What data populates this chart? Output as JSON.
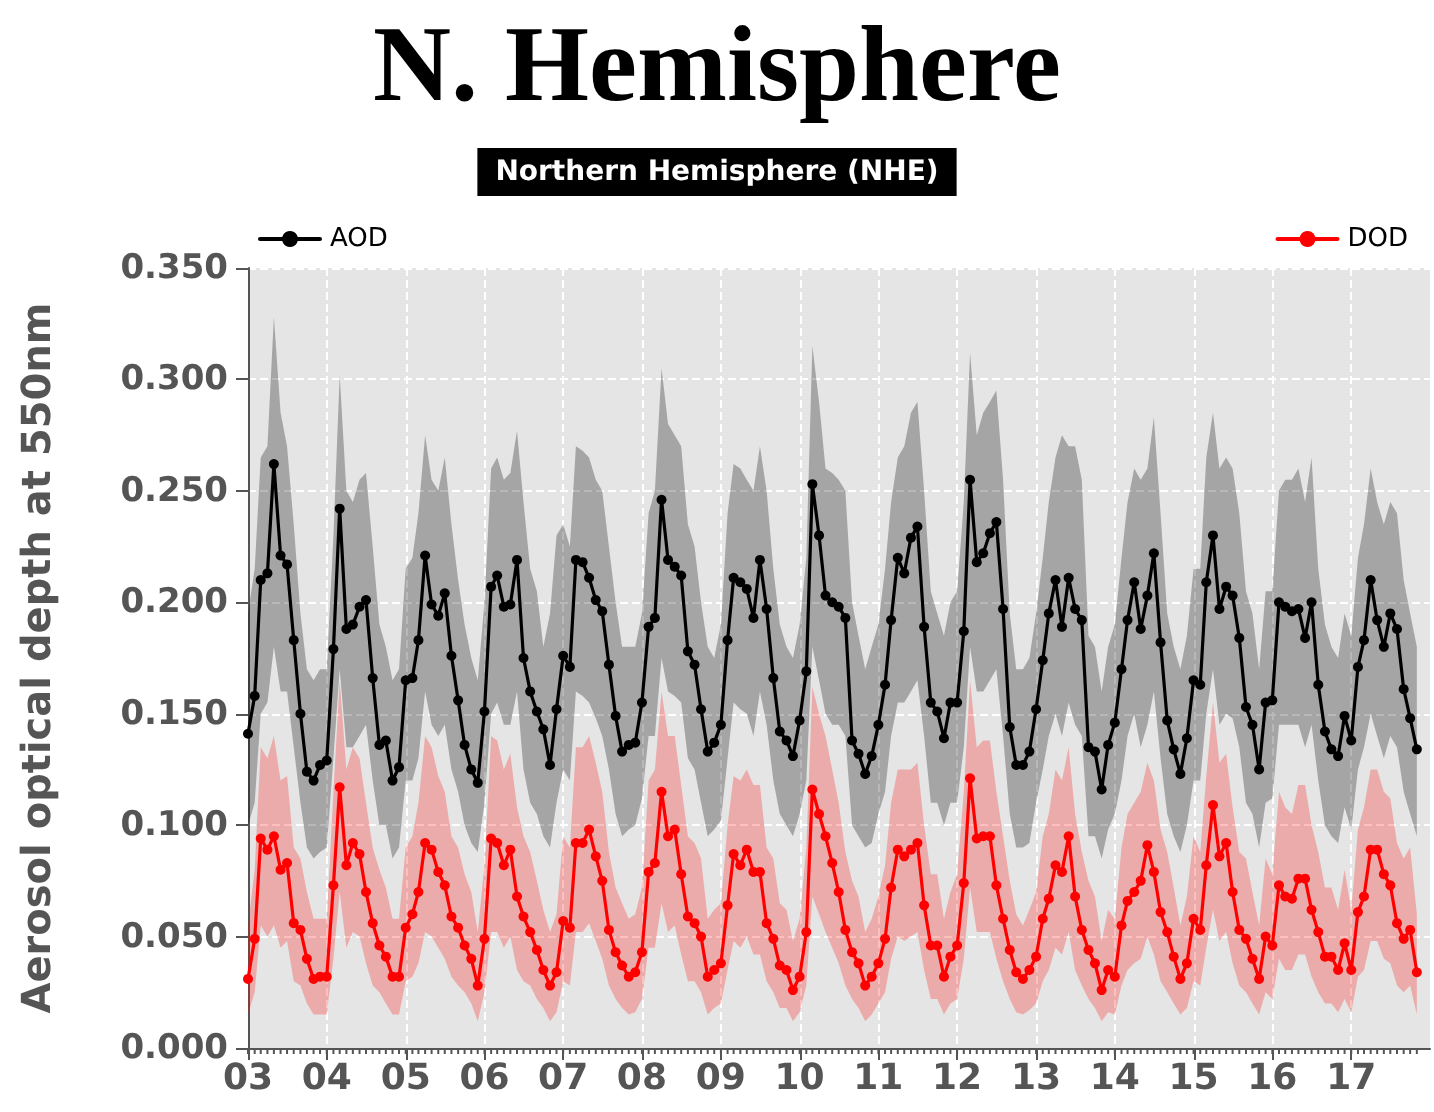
{
  "chart_data": {
    "type": "line",
    "title": "N. Hemisphere",
    "subtitle": "Northern Hemisphere (NHE)",
    "ylabel": "Aerosol optical depth at 550nm",
    "x": [
      "2003-01",
      "2003-02",
      "2003-03",
      "2003-04",
      "2003-05",
      "2003-06",
      "2003-07",
      "2003-08",
      "2003-09",
      "2003-10",
      "2003-11",
      "2003-12",
      "2004-01",
      "2004-02",
      "2004-03",
      "2004-04",
      "2004-05",
      "2004-06",
      "2004-07",
      "2004-08",
      "2004-09",
      "2004-10",
      "2004-11",
      "2004-12",
      "2005-01",
      "2005-02",
      "2005-03",
      "2005-04",
      "2005-05",
      "2005-06",
      "2005-07",
      "2005-08",
      "2005-09",
      "2005-10",
      "2005-11",
      "2005-12",
      "2006-01",
      "2006-02",
      "2006-03",
      "2006-04",
      "2006-05",
      "2006-06",
      "2006-07",
      "2006-08",
      "2006-09",
      "2006-10",
      "2006-11",
      "2006-12",
      "2007-01",
      "2007-02",
      "2007-03",
      "2007-04",
      "2007-05",
      "2007-06",
      "2007-07",
      "2007-08",
      "2007-09",
      "2007-10",
      "2007-11",
      "2007-12",
      "2008-01",
      "2008-02",
      "2008-03",
      "2008-04",
      "2008-05",
      "2008-06",
      "2008-07",
      "2008-08",
      "2008-09",
      "2008-10",
      "2008-11",
      "2008-12",
      "2009-01",
      "2009-02",
      "2009-03",
      "2009-04",
      "2009-05",
      "2009-06",
      "2009-07",
      "2009-08",
      "2009-09",
      "2009-10",
      "2009-11",
      "2009-12",
      "2010-01",
      "2010-02",
      "2010-03",
      "2010-04",
      "2010-05",
      "2010-06",
      "2010-07",
      "2010-08",
      "2010-09",
      "2010-10",
      "2010-11",
      "2010-12",
      "2011-01",
      "2011-02",
      "2011-03",
      "2011-04",
      "2011-05",
      "2011-06",
      "2011-07",
      "2011-08",
      "2011-09",
      "2011-10",
      "2011-11",
      "2011-12",
      "2012-01",
      "2012-02",
      "2012-03",
      "2012-04",
      "2012-05",
      "2012-06",
      "2012-07",
      "2012-08",
      "2012-09",
      "2012-10",
      "2012-11",
      "2012-12",
      "2013-01",
      "2013-02",
      "2013-03",
      "2013-04",
      "2013-05",
      "2013-06",
      "2013-07",
      "2013-08",
      "2013-09",
      "2013-10",
      "2013-11",
      "2013-12",
      "2014-01",
      "2014-02",
      "2014-03",
      "2014-04",
      "2014-05",
      "2014-06",
      "2014-07",
      "2014-08",
      "2014-09",
      "2014-10",
      "2014-11",
      "2014-12",
      "2015-01",
      "2015-02",
      "2015-03",
      "2015-04",
      "2015-05",
      "2015-06",
      "2015-07",
      "2015-08",
      "2015-09",
      "2015-10",
      "2015-11",
      "2015-12",
      "2016-01",
      "2016-02",
      "2016-03",
      "2016-04",
      "2016-05",
      "2016-06",
      "2016-07",
      "2016-08",
      "2016-09",
      "2016-10",
      "2016-11",
      "2016-12",
      "2017-01",
      "2017-02",
      "2017-03",
      "2017-04",
      "2017-05",
      "2017-06",
      "2017-07",
      "2017-08",
      "2017-09",
      "2017-10",
      "2017-11"
    ],
    "xlim": [
      "2003-01",
      "2018-01"
    ],
    "xticks": [
      {
        "value": "2003-01",
        "label": "03"
      },
      {
        "value": "2004-01",
        "label": "04"
      },
      {
        "value": "2005-01",
        "label": "05"
      },
      {
        "value": "2006-01",
        "label": "06"
      },
      {
        "value": "2007-01",
        "label": "07"
      },
      {
        "value": "2008-01",
        "label": "08"
      },
      {
        "value": "2009-01",
        "label": "09"
      },
      {
        "value": "2010-01",
        "label": "10"
      },
      {
        "value": "2011-01",
        "label": "11"
      },
      {
        "value": "2012-01",
        "label": "12"
      },
      {
        "value": "2013-01",
        "label": "13"
      },
      {
        "value": "2014-01",
        "label": "14"
      },
      {
        "value": "2015-01",
        "label": "15"
      },
      {
        "value": "2016-01",
        "label": "16"
      },
      {
        "value": "2017-01",
        "label": "17"
      }
    ],
    "ylim": [
      0,
      0.35
    ],
    "yticks": [
      {
        "value": 0,
        "label": "0.000"
      },
      {
        "value": 0.05,
        "label": "0.050"
      },
      {
        "value": 0.1,
        "label": "0.100"
      },
      {
        "value": 0.15,
        "label": "0.150"
      },
      {
        "value": 0.2,
        "label": "0.200"
      },
      {
        "value": 0.25,
        "label": "0.250"
      },
      {
        "value": 0.3,
        "label": "0.300"
      },
      {
        "value": 0.35,
        "label": "0.350"
      }
    ],
    "grid": true,
    "legend": "top",
    "marker": "circle",
    "line_style": "solid",
    "series": [
      {
        "name": "AOD",
        "color": "#000000",
        "values": [
          0.141,
          0.158,
          0.21,
          0.213,
          0.262,
          0.221,
          0.217,
          0.183,
          0.15,
          0.124,
          0.12,
          0.127,
          0.129,
          0.179,
          0.242,
          0.188,
          0.19,
          0.198,
          0.201,
          0.166,
          0.136,
          0.138,
          0.12,
          0.126,
          0.165,
          0.166,
          0.183,
          0.221,
          0.199,
          0.194,
          0.204,
          0.176,
          0.156,
          0.136,
          0.125,
          0.119,
          0.151,
          0.207,
          0.212,
          0.198,
          0.199,
          0.219,
          0.175,
          0.16,
          0.151,
          0.143,
          0.127,
          0.152,
          0.176,
          0.171,
          0.219,
          0.218,
          0.211,
          0.201,
          0.196,
          0.172,
          0.149,
          0.133,
          0.136,
          0.137,
          0.155,
          0.189,
          0.193,
          0.246,
          0.219,
          0.216,
          0.212,
          0.178,
          0.172,
          0.152,
          0.133,
          0.137,
          0.145,
          0.183,
          0.211,
          0.209,
          0.206,
          0.193,
          0.219,
          0.197,
          0.166,
          0.142,
          0.138,
          0.131,
          0.147,
          0.169,
          0.253,
          0.23,
          0.203,
          0.2,
          0.198,
          0.193,
          0.138,
          0.132,
          0.123,
          0.131,
          0.145,
          0.163,
          0.192,
          0.22,
          0.213,
          0.229,
          0.234,
          0.189,
          0.155,
          0.151,
          0.139,
          0.155,
          0.155,
          0.187,
          0.255,
          0.218,
          0.222,
          0.231,
          0.236,
          0.197,
          0.144,
          0.127,
          0.127,
          0.133,
          0.152,
          0.174,
          0.195,
          0.21,
          0.189,
          0.211,
          0.197,
          0.192,
          0.135,
          0.133,
          0.116,
          0.136,
          0.146,
          0.17,
          0.192,
          0.209,
          0.188,
          0.203,
          0.222,
          0.182,
          0.147,
          0.134,
          0.123,
          0.139,
          0.165,
          0.163,
          0.209,
          0.23,
          0.197,
          0.207,
          0.203,
          0.184,
          0.153,
          0.145,
          0.125,
          0.155,
          0.156,
          0.2,
          0.198,
          0.196,
          0.197,
          0.184,
          0.2,
          0.163,
          0.142,
          0.134,
          0.131,
          0.149,
          0.138,
          0.171,
          0.183,
          0.21,
          0.192,
          0.18,
          0.195,
          0.188,
          0.161,
          0.148,
          0.134
        ],
        "upper": [
          0.195,
          0.215,
          0.265,
          0.27,
          0.328,
          0.285,
          0.27,
          0.235,
          0.195,
          0.17,
          0.165,
          0.17,
          0.17,
          0.23,
          0.302,
          0.25,
          0.245,
          0.255,
          0.258,
          0.225,
          0.19,
          0.18,
          0.165,
          0.17,
          0.215,
          0.22,
          0.24,
          0.275,
          0.255,
          0.25,
          0.265,
          0.235,
          0.21,
          0.19,
          0.175,
          0.165,
          0.2,
          0.26,
          0.265,
          0.255,
          0.258,
          0.277,
          0.245,
          0.215,
          0.205,
          0.18,
          0.195,
          0.23,
          0.235,
          0.225,
          0.27,
          0.268,
          0.265,
          0.255,
          0.25,
          0.225,
          0.2,
          0.18,
          0.18,
          0.18,
          0.195,
          0.24,
          0.25,
          0.305,
          0.28,
          0.275,
          0.27,
          0.235,
          0.225,
          0.2,
          0.18,
          0.175,
          0.19,
          0.24,
          0.262,
          0.26,
          0.255,
          0.25,
          0.27,
          0.25,
          0.215,
          0.19,
          0.18,
          0.175,
          0.19,
          0.22,
          0.315,
          0.29,
          0.26,
          0.258,
          0.255,
          0.25,
          0.2,
          0.185,
          0.17,
          0.18,
          0.19,
          0.215,
          0.245,
          0.265,
          0.27,
          0.285,
          0.29,
          0.25,
          0.205,
          0.195,
          0.185,
          0.2,
          0.205,
          0.245,
          0.312,
          0.275,
          0.285,
          0.29,
          0.295,
          0.255,
          0.195,
          0.17,
          0.17,
          0.175,
          0.195,
          0.22,
          0.245,
          0.265,
          0.275,
          0.27,
          0.27,
          0.255,
          0.185,
          0.18,
          0.16,
          0.18,
          0.19,
          0.22,
          0.245,
          0.26,
          0.255,
          0.26,
          0.283,
          0.24,
          0.195,
          0.18,
          0.17,
          0.185,
          0.215,
          0.215,
          0.265,
          0.285,
          0.26,
          0.265,
          0.26,
          0.24,
          0.205,
          0.195,
          0.17,
          0.205,
          0.205,
          0.25,
          0.255,
          0.255,
          0.26,
          0.245,
          0.265,
          0.215,
          0.19,
          0.18,
          0.175,
          0.195,
          0.185,
          0.22,
          0.235,
          0.26,
          0.245,
          0.235,
          0.245,
          0.24,
          0.21,
          0.195,
          0.18
        ],
        "lower": [
          0.1,
          0.11,
          0.15,
          0.155,
          0.18,
          0.16,
          0.16,
          0.135,
          0.11,
          0.09,
          0.085,
          0.088,
          0.09,
          0.13,
          0.17,
          0.135,
          0.135,
          0.14,
          0.145,
          0.12,
          0.1,
          0.1,
          0.085,
          0.09,
          0.12,
          0.12,
          0.13,
          0.16,
          0.145,
          0.14,
          0.145,
          0.125,
          0.115,
          0.1,
          0.092,
          0.088,
          0.11,
          0.15,
          0.155,
          0.145,
          0.145,
          0.16,
          0.125,
          0.11,
          0.105,
          0.095,
          0.09,
          0.11,
          0.125,
          0.12,
          0.16,
          0.158,
          0.155,
          0.148,
          0.14,
          0.125,
          0.105,
          0.095,
          0.098,
          0.1,
          0.112,
          0.14,
          0.14,
          0.175,
          0.16,
          0.158,
          0.155,
          0.13,
          0.125,
          0.11,
          0.095,
          0.098,
          0.102,
          0.13,
          0.155,
          0.152,
          0.15,
          0.14,
          0.16,
          0.145,
          0.12,
          0.105,
          0.1,
          0.095,
          0.105,
          0.12,
          0.18,
          0.165,
          0.15,
          0.145,
          0.145,
          0.14,
          0.1,
          0.095,
          0.09,
          0.092,
          0.105,
          0.115,
          0.14,
          0.155,
          0.155,
          0.16,
          0.165,
          0.14,
          0.11,
          0.11,
          0.1,
          0.11,
          0.11,
          0.135,
          0.18,
          0.16,
          0.16,
          0.165,
          0.17,
          0.14,
          0.105,
          0.09,
          0.09,
          0.092,
          0.11,
          0.125,
          0.14,
          0.15,
          0.14,
          0.155,
          0.145,
          0.14,
          0.095,
          0.095,
          0.085,
          0.098,
          0.105,
          0.12,
          0.14,
          0.15,
          0.135,
          0.145,
          0.16,
          0.13,
          0.105,
          0.095,
          0.088,
          0.1,
          0.12,
          0.12,
          0.15,
          0.17,
          0.145,
          0.15,
          0.148,
          0.135,
          0.11,
          0.105,
          0.09,
          0.11,
          0.112,
          0.145,
          0.145,
          0.145,
          0.145,
          0.135,
          0.145,
          0.12,
          0.1,
          0.095,
          0.092,
          0.108,
          0.098,
          0.125,
          0.135,
          0.15,
          0.14,
          0.13,
          0.14,
          0.135,
          0.115,
          0.105,
          0.095
        ]
      },
      {
        "name": "DOD",
        "color": "#ff0000",
        "values": [
          0.031,
          0.049,
          0.094,
          0.089,
          0.095,
          0.08,
          0.083,
          0.056,
          0.053,
          0.04,
          0.031,
          0.032,
          0.032,
          0.073,
          0.117,
          0.082,
          0.092,
          0.087,
          0.07,
          0.056,
          0.046,
          0.041,
          0.032,
          0.032,
          0.054,
          0.06,
          0.07,
          0.092,
          0.089,
          0.079,
          0.073,
          0.059,
          0.054,
          0.046,
          0.04,
          0.028,
          0.049,
          0.094,
          0.092,
          0.082,
          0.089,
          0.068,
          0.059,
          0.052,
          0.044,
          0.035,
          0.028,
          0.034,
          0.057,
          0.054,
          0.092,
          0.092,
          0.098,
          0.086,
          0.075,
          0.053,
          0.043,
          0.037,
          0.032,
          0.034,
          0.043,
          0.079,
          0.083,
          0.115,
          0.095,
          0.098,
          0.078,
          0.059,
          0.056,
          0.05,
          0.032,
          0.035,
          0.038,
          0.064,
          0.087,
          0.082,
          0.089,
          0.079,
          0.079,
          0.056,
          0.049,
          0.037,
          0.035,
          0.026,
          0.032,
          0.052,
          0.116,
          0.105,
          0.095,
          0.083,
          0.07,
          0.053,
          0.043,
          0.038,
          0.028,
          0.032,
          0.038,
          0.049,
          0.072,
          0.089,
          0.086,
          0.089,
          0.092,
          0.064,
          0.046,
          0.046,
          0.032,
          0.041,
          0.046,
          0.074,
          0.121,
          0.094,
          0.095,
          0.095,
          0.073,
          0.058,
          0.044,
          0.034,
          0.031,
          0.035,
          0.041,
          0.058,
          0.067,
          0.082,
          0.079,
          0.095,
          0.068,
          0.053,
          0.044,
          0.038,
          0.026,
          0.035,
          0.032,
          0.055,
          0.066,
          0.07,
          0.075,
          0.091,
          0.079,
          0.061,
          0.052,
          0.041,
          0.031,
          0.038,
          0.058,
          0.053,
          0.082,
          0.109,
          0.086,
          0.092,
          0.07,
          0.053,
          0.049,
          0.04,
          0.031,
          0.05,
          0.046,
          0.073,
          0.068,
          0.067,
          0.076,
          0.076,
          0.062,
          0.052,
          0.041,
          0.041,
          0.035,
          0.047,
          0.035,
          0.061,
          0.068,
          0.089,
          0.089,
          0.078,
          0.073,
          0.056,
          0.049,
          0.053,
          0.034
        ],
        "upper": [
          0.055,
          0.08,
          0.135,
          0.13,
          0.14,
          0.12,
          0.122,
          0.09,
          0.085,
          0.07,
          0.058,
          0.058,
          0.058,
          0.115,
          0.165,
          0.125,
          0.135,
          0.13,
          0.11,
          0.09,
          0.08,
          0.072,
          0.058,
          0.058,
          0.09,
          0.095,
          0.11,
          0.14,
          0.135,
          0.122,
          0.115,
          0.095,
          0.09,
          0.078,
          0.07,
          0.052,
          0.082,
          0.14,
          0.138,
          0.125,
          0.132,
          0.108,
          0.095,
          0.088,
          0.075,
          0.062,
          0.052,
          0.06,
          0.095,
          0.09,
          0.135,
          0.135,
          0.14,
          0.128,
          0.115,
          0.088,
          0.072,
          0.065,
          0.058,
          0.06,
          0.072,
          0.12,
          0.125,
          0.16,
          0.14,
          0.14,
          0.118,
          0.095,
          0.092,
          0.085,
          0.058,
          0.062,
          0.065,
          0.1,
          0.122,
          0.12,
          0.125,
          0.118,
          0.118,
          0.09,
          0.085,
          0.065,
          0.062,
          0.048,
          0.058,
          0.09,
          0.162,
          0.15,
          0.14,
          0.125,
          0.11,
          0.088,
          0.075,
          0.068,
          0.052,
          0.058,
          0.068,
          0.082,
          0.11,
          0.125,
          0.125,
          0.125,
          0.128,
          0.1,
          0.078,
          0.078,
          0.058,
          0.07,
          0.078,
          0.115,
          0.165,
          0.135,
          0.138,
          0.138,
          0.115,
          0.095,
          0.075,
          0.06,
          0.055,
          0.062,
          0.07,
          0.095,
          0.105,
          0.125,
          0.12,
          0.135,
          0.105,
          0.088,
          0.075,
          0.068,
          0.048,
          0.062,
          0.058,
          0.09,
          0.105,
          0.11,
          0.115,
          0.128,
          0.12,
          0.098,
          0.088,
          0.072,
          0.055,
          0.068,
          0.095,
          0.088,
          0.122,
          0.155,
          0.128,
          0.132,
          0.108,
          0.088,
          0.085,
          0.07,
          0.055,
          0.085,
          0.078,
          0.115,
          0.108,
          0.105,
          0.118,
          0.118,
          0.1,
          0.088,
          0.072,
          0.072,
          0.062,
          0.08,
          0.062,
          0.098,
          0.108,
          0.125,
          0.125,
          0.115,
          0.112,
          0.092,
          0.085,
          0.09,
          0.06
        ],
        "lower": [
          0.015,
          0.025,
          0.055,
          0.05,
          0.055,
          0.045,
          0.048,
          0.03,
          0.028,
          0.02,
          0.015,
          0.015,
          0.015,
          0.04,
          0.07,
          0.045,
          0.052,
          0.05,
          0.038,
          0.028,
          0.025,
          0.02,
          0.015,
          0.015,
          0.03,
          0.032,
          0.038,
          0.052,
          0.05,
          0.045,
          0.04,
          0.032,
          0.028,
          0.025,
          0.02,
          0.012,
          0.025,
          0.052,
          0.052,
          0.045,
          0.05,
          0.035,
          0.03,
          0.028,
          0.022,
          0.018,
          0.012,
          0.016,
          0.03,
          0.028,
          0.052,
          0.052,
          0.056,
          0.048,
          0.04,
          0.028,
          0.022,
          0.018,
          0.015,
          0.016,
          0.022,
          0.045,
          0.045,
          0.065,
          0.052,
          0.055,
          0.042,
          0.03,
          0.03,
          0.025,
          0.015,
          0.018,
          0.02,
          0.035,
          0.048,
          0.045,
          0.05,
          0.042,
          0.042,
          0.03,
          0.025,
          0.018,
          0.018,
          0.012,
          0.016,
          0.028,
          0.068,
          0.06,
          0.052,
          0.045,
          0.038,
          0.028,
          0.022,
          0.018,
          0.012,
          0.015,
          0.02,
          0.025,
          0.04,
          0.05,
          0.048,
          0.05,
          0.052,
          0.035,
          0.022,
          0.022,
          0.015,
          0.02,
          0.022,
          0.04,
          0.072,
          0.052,
          0.052,
          0.052,
          0.04,
          0.03,
          0.022,
          0.016,
          0.015,
          0.017,
          0.02,
          0.03,
          0.035,
          0.045,
          0.042,
          0.052,
          0.035,
          0.028,
          0.022,
          0.018,
          0.012,
          0.016,
          0.015,
          0.028,
          0.035,
          0.038,
          0.04,
          0.05,
          0.042,
          0.03,
          0.025,
          0.02,
          0.015,
          0.018,
          0.03,
          0.028,
          0.045,
          0.062,
          0.048,
          0.052,
          0.038,
          0.028,
          0.025,
          0.02,
          0.015,
          0.025,
          0.022,
          0.04,
          0.035,
          0.035,
          0.042,
          0.042,
          0.032,
          0.025,
          0.02,
          0.02,
          0.016,
          0.022,
          0.016,
          0.032,
          0.035,
          0.048,
          0.048,
          0.04,
          0.038,
          0.028,
          0.025,
          0.028,
          0.015
        ]
      }
    ]
  }
}
